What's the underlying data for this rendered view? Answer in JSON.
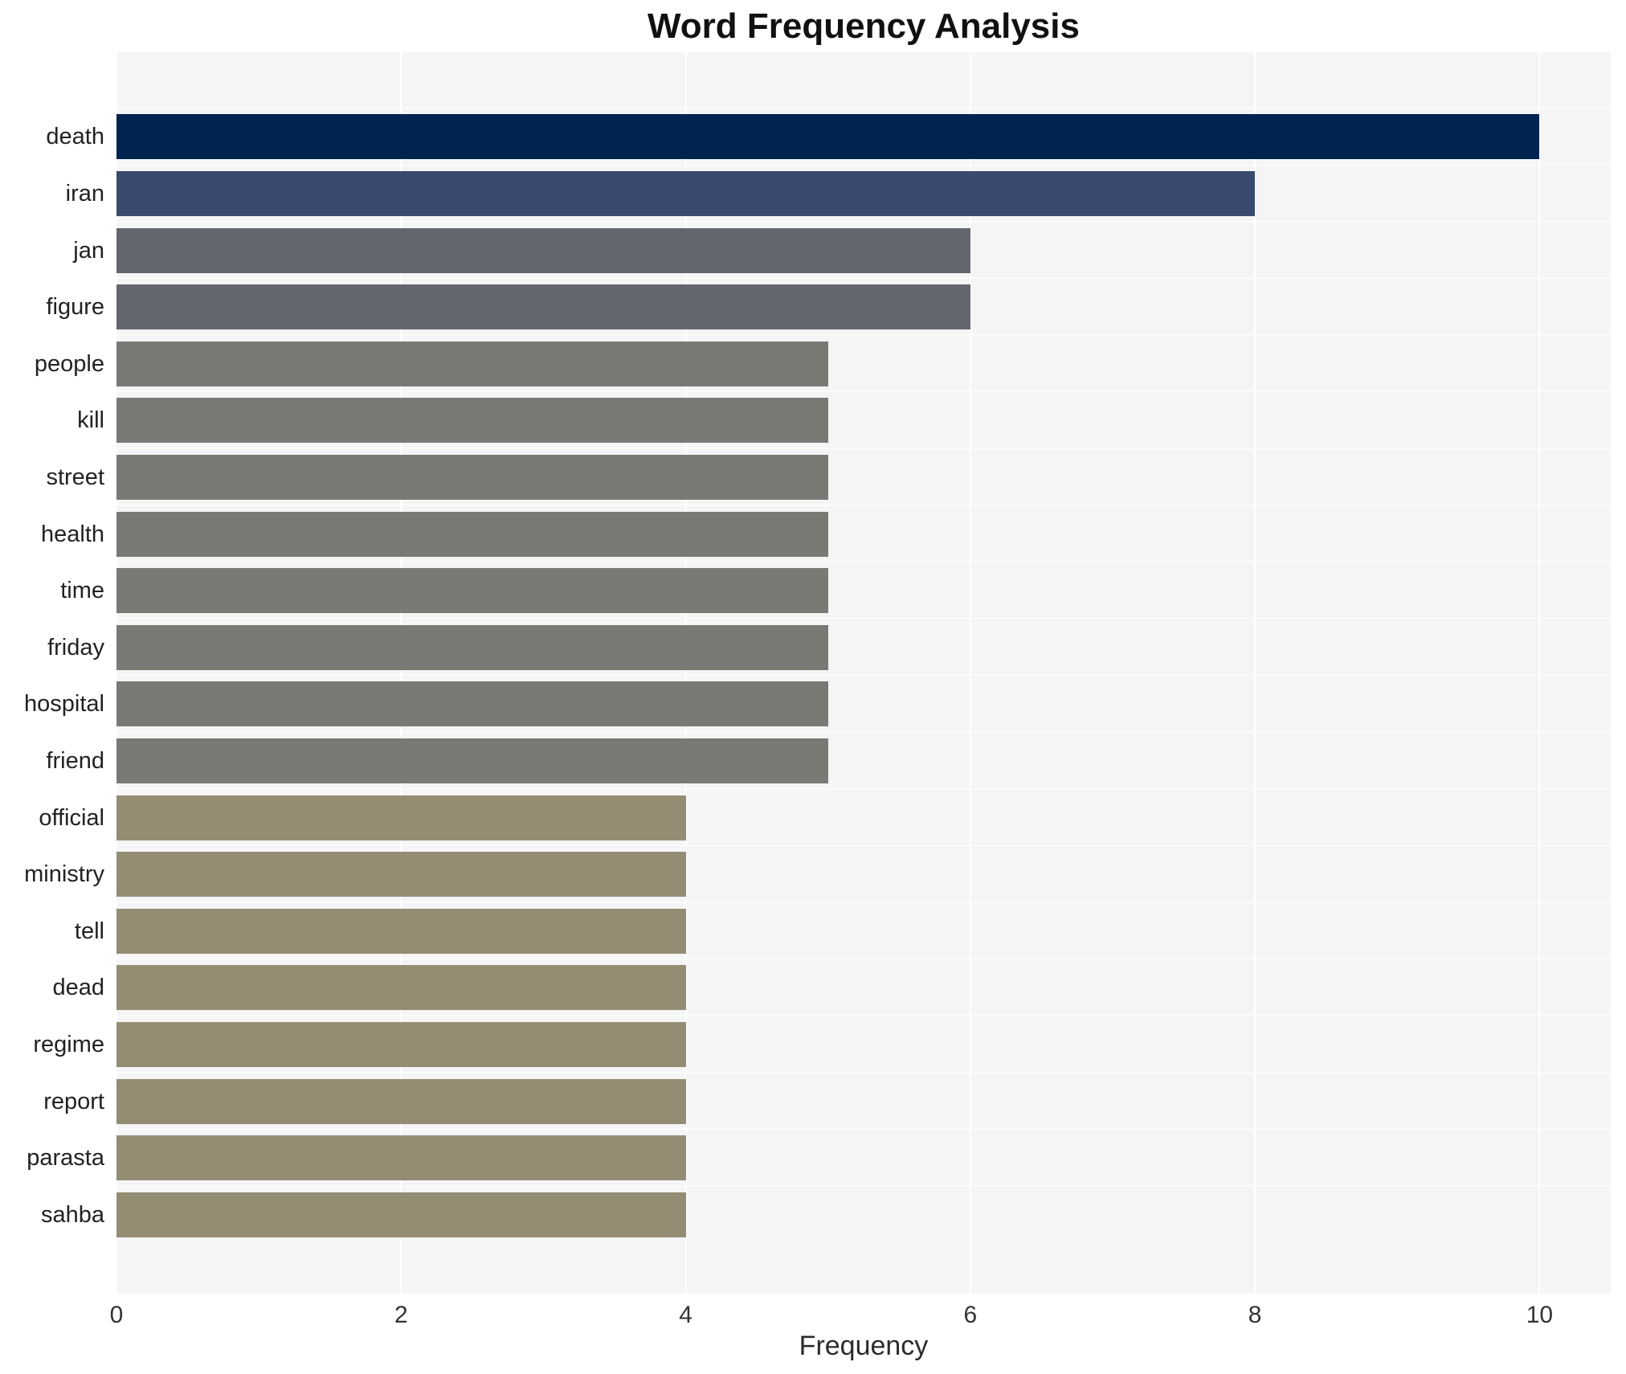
{
  "chart_data": {
    "type": "bar",
    "orientation": "horizontal",
    "title": "Word Frequency Analysis",
    "xlabel": "Frequency",
    "ylabel": "",
    "categories": [
      "death",
      "iran",
      "jan",
      "figure",
      "people",
      "kill",
      "street",
      "health",
      "time",
      "friday",
      "hospital",
      "friend",
      "official",
      "ministry",
      "tell",
      "dead",
      "regime",
      "report",
      "parasta",
      "sahba"
    ],
    "values": [
      10,
      8,
      6,
      6,
      5,
      5,
      5,
      5,
      5,
      5,
      5,
      5,
      4,
      4,
      4,
      4,
      4,
      4,
      4,
      4
    ],
    "bar_colors": [
      "#00234f",
      "#3a4a6e",
      "#62666f",
      "#62666f",
      "#7a7974",
      "#7a7974",
      "#7a7974",
      "#7a7974",
      "#7a7974",
      "#7a7974",
      "#7a7974",
      "#7a7974",
      "#948d74",
      "#948d74",
      "#948d74",
      "#948d74",
      "#948d74",
      "#948d74",
      "#948d74",
      "#948d74"
    ],
    "x_ticks": [
      0,
      2,
      4,
      6,
      8,
      10
    ],
    "xlim": [
      0,
      10.5
    ],
    "grid": "vertical-white-lines",
    "legend": "none",
    "plot_background": "#f5f5f6",
    "figure_background": "#ffffff",
    "title_color": "#111111",
    "tick_label_color": "#333333"
  }
}
